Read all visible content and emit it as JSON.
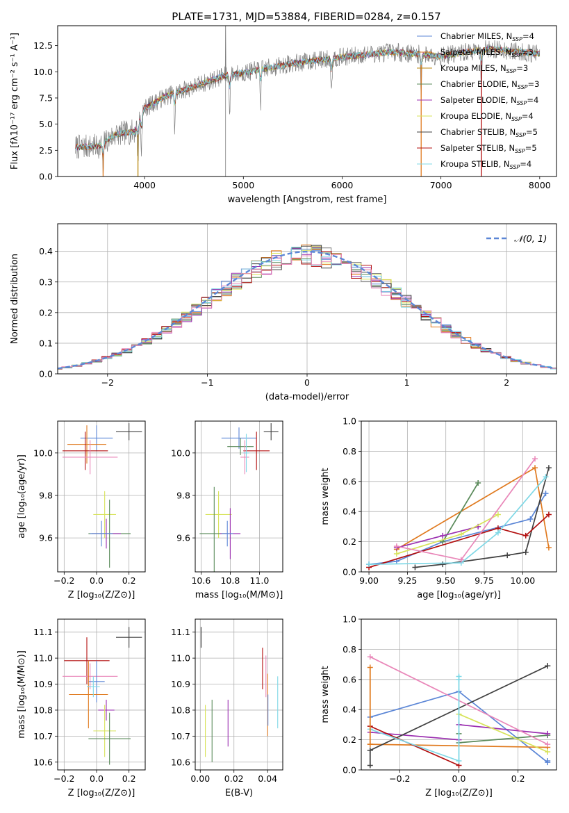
{
  "figure": {
    "title": "PLATE=1731, MJD=53884, FIBERID=0284, z=0.157"
  },
  "palette": [
    "#5b86d6",
    "#e07a1f",
    "#7f7f7f",
    "#5a8a5a",
    "#9b2fb0",
    "#d7e35a",
    "#404040",
    "#b30f0f",
    "#7fd8e6",
    "#e987b9"
  ],
  "legend_entries": [
    {
      "label": "Chabrier MILES, N",
      "sub": "SSP",
      "suffix": "=4",
      "color": "#5b86d6"
    },
    {
      "label": "Salpeter MILES, N",
      "sub": "SSP",
      "suffix": "=3",
      "color": "#e07a1f"
    },
    {
      "label": "Kroupa MILES, N",
      "sub": "SSP",
      "suffix": "=3",
      "color": "#b8860b"
    },
    {
      "label": "Chabrier ELODIE, N",
      "sub": "SSP",
      "suffix": "=3",
      "color": "#5a8a5a"
    },
    {
      "label": "Salpeter ELODIE, N",
      "sub": "SSP",
      "suffix": "=4",
      "color": "#9b2fb0"
    },
    {
      "label": "Kroupa ELODIE, N",
      "sub": "SSP",
      "suffix": "=4",
      "color": "#d7e35a"
    },
    {
      "label": "Chabrier STELIB, N",
      "sub": "SSP",
      "suffix": "=5",
      "color": "#404040"
    },
    {
      "label": "Salpeter STELIB, N",
      "sub": "SSP",
      "suffix": "=5",
      "color": "#b30f0f"
    },
    {
      "label": "Kroupa STELIB, N",
      "sub": "SSP",
      "suffix": "=4",
      "color": "#7fd8e6"
    }
  ],
  "chart_data": [
    {
      "id": "spectrum",
      "type": "line",
      "xlabel": "wavelength [Angstrom, rest frame]",
      "ylabel": "Flux [fλ10⁻¹⁷ erg cm⁻² s⁻¹ A⁻¹]",
      "xlim": [
        3120,
        8170
      ],
      "ylim": [
        0,
        14.4
      ],
      "xticks": [
        4000,
        5000,
        6000,
        7000,
        8000
      ],
      "yticks": [
        0.0,
        2.5,
        5.0,
        7.5,
        10.0,
        12.5
      ],
      "ytick_labels": [
        "0.0",
        "2.5",
        "5.0",
        "7.5",
        "10.0",
        "12.5"
      ],
      "x_start": 3300,
      "x_end": 8000,
      "continuum_anchors": [
        [
          3300,
          2.8
        ],
        [
          3550,
          2.9
        ],
        [
          3700,
          4.0
        ],
        [
          3900,
          4.3
        ],
        [
          4000,
          6.5
        ],
        [
          4200,
          7.6
        ],
        [
          4500,
          8.6
        ],
        [
          4800,
          9.6
        ],
        [
          5000,
          9.9
        ],
        [
          5500,
          10.8
        ],
        [
          6000,
          11.4
        ],
        [
          6500,
          11.9
        ],
        [
          7000,
          11.5
        ],
        [
          7500,
          12.2
        ],
        [
          8000,
          11.7
        ]
      ],
      "absorption_lines": [
        3580,
        3933,
        3968,
        4304,
        4861,
        5175,
        5892,
        6800,
        7410
      ],
      "spike_x": 4820,
      "legend_position": "upper right"
    },
    {
      "id": "residuals",
      "type": "histogram",
      "xlabel": "(data-model)/error",
      "ylabel": "Normed distribution",
      "xlim": [
        -2.5,
        2.5
      ],
      "ylim": [
        0,
        0.49
      ],
      "xticks": [
        -2,
        -1,
        0,
        1,
        2
      ],
      "xtick_labels": [
        "−2",
        "−1",
        "0",
        "1",
        "2"
      ],
      "yticks": [
        0.0,
        0.1,
        0.2,
        0.3,
        0.4
      ],
      "ytick_labels": [
        "0.0",
        "0.1",
        "0.2",
        "0.3",
        "0.4"
      ],
      "bin_width": 0.1,
      "reference_curve": {
        "label": "𝒩(0, 1)",
        "mean": 0,
        "sigma": 1,
        "color": "#5b86d6",
        "style": "dashed"
      },
      "grid": true,
      "legend_position": "upper right"
    },
    {
      "id": "age_vs_Z",
      "type": "scatter",
      "xlabel": "Z [log₁₀(Z/Z⊙)]",
      "ylabel": "age  [log₁₀(age/yr)]",
      "xlim": [
        -0.24,
        0.3
      ],
      "ylim": [
        9.44,
        10.15
      ],
      "xticks": [
        -0.2,
        0.0,
        0.2
      ],
      "xtick_labels": [
        "−0.2",
        "0.0",
        "0.2"
      ],
      "yticks": [
        9.6,
        9.8,
        10.0
      ],
      "ytick_labels": [
        "9.6",
        "9.8",
        "10.0"
      ],
      "points": [
        {
          "x": 0.0,
          "y": 10.07,
          "xerr": 0.1,
          "yerr": 0.06,
          "color": "#5b86d6"
        },
        {
          "x": -0.06,
          "y": 10.04,
          "xerr": 0.12,
          "yerr": 0.09,
          "color": "#e07a1f"
        },
        {
          "x": 0.2,
          "y": 10.1,
          "xerr": 0.08,
          "yerr": 0.04,
          "color": "#404040"
        },
        {
          "x": -0.07,
          "y": 10.01,
          "xerr": 0.14,
          "yerr": 0.09,
          "color": "#b30f0f"
        },
        {
          "x": -0.04,
          "y": 9.98,
          "xerr": 0.17,
          "yerr": 0.08,
          "color": "#e987b9"
        },
        {
          "x": 0.05,
          "y": 9.71,
          "xerr": 0.07,
          "yerr": 0.11,
          "color": "#d7e35a"
        },
        {
          "x": 0.08,
          "y": 9.62,
          "xerr": 0.13,
          "yerr": 0.16,
          "color": "#5a8a5a"
        },
        {
          "x": 0.06,
          "y": 9.62,
          "xerr": 0.09,
          "yerr": 0.07,
          "color": "#9b2fb0"
        },
        {
          "x": 0.03,
          "y": 9.62,
          "xerr": 0.07,
          "yerr": 0.06,
          "color": "#5b86d6"
        }
      ]
    },
    {
      "id": "age_vs_mass",
      "type": "scatter",
      "xlabel": "mass [log₁₀(M/M⊙)]",
      "ylabel": "",
      "xlim": [
        10.56,
        11.16
      ],
      "ylim": [
        9.44,
        10.15
      ],
      "xticks": [
        10.6,
        10.8,
        11.0
      ],
      "xtick_labels": [
        "10.6",
        "10.8",
        "11.0"
      ],
      "yticks": [
        9.6,
        9.8,
        10.0
      ],
      "ytick_labels": [
        "9.6",
        "9.8",
        "10.0"
      ],
      "points": [
        {
          "x": 10.86,
          "y": 10.07,
          "xerr": 0.12,
          "yerr": 0.05,
          "color": "#5b86d6"
        },
        {
          "x": 10.87,
          "y": 10.03,
          "xerr": 0.09,
          "yerr": 0.04,
          "color": "#5a8a5a"
        },
        {
          "x": 11.08,
          "y": 10.1,
          "xerr": 0.05,
          "yerr": 0.04,
          "color": "#404040"
        },
        {
          "x": 10.98,
          "y": 10.01,
          "xerr": 0.09,
          "yerr": 0.09,
          "color": "#b30f0f"
        },
        {
          "x": 10.9,
          "y": 9.98,
          "xerr": 0.03,
          "yerr": 0.08,
          "color": "#e987b9"
        },
        {
          "x": 10.91,
          "y": 10.0,
          "xerr": 0.02,
          "yerr": 0.09,
          "color": "#7fd8e6"
        },
        {
          "x": 10.72,
          "y": 9.71,
          "xerr": 0.09,
          "yerr": 0.11,
          "color": "#d7e35a"
        },
        {
          "x": 10.69,
          "y": 9.62,
          "xerr": 0.1,
          "yerr": 0.22,
          "color": "#5a8a5a"
        },
        {
          "x": 10.8,
          "y": 9.62,
          "xerr": 0.07,
          "yerr": 0.12,
          "color": "#9b2fb0"
        },
        {
          "x": 10.78,
          "y": 9.62,
          "xerr": 0.04,
          "yerr": 0.06,
          "color": "#5b86d6"
        }
      ]
    },
    {
      "id": "weight_vs_age",
      "type": "line",
      "xlabel": "age  [log₁₀(age/yr)]",
      "ylabel": "mass weight",
      "xlim": [
        8.95,
        10.22
      ],
      "ylim": [
        0,
        1.0
      ],
      "xticks": [
        9.0,
        9.25,
        9.5,
        9.75,
        10.0
      ],
      "xtick_labels": [
        "9.00",
        "9.25",
        "9.50",
        "9.75",
        "10.00"
      ],
      "yticks": [
        0.0,
        0.2,
        0.4,
        0.6,
        0.8,
        1.0
      ],
      "ytick_labels": [
        "0.0",
        "0.2",
        "0.4",
        "0.6",
        "0.8",
        "1.0"
      ],
      "series": [
        {
          "color": "#5b86d6",
          "points": [
            [
              9.0,
              0.05
            ],
            [
              9.18,
              0.07
            ],
            [
              9.48,
              0.2
            ],
            [
              10.05,
              0.35
            ],
            [
              10.15,
              0.52
            ]
          ]
        },
        {
          "color": "#e07a1f",
          "points": [
            [
              9.18,
              0.15
            ],
            [
              10.08,
              0.69
            ],
            [
              10.17,
              0.16
            ]
          ]
        },
        {
          "color": "#5a8a5a",
          "points": [
            [
              9.48,
              0.2
            ],
            [
              9.71,
              0.59
            ]
          ]
        },
        {
          "color": "#9b2fb0",
          "points": [
            [
              9.18,
              0.16
            ],
            [
              9.48,
              0.24
            ],
            [
              9.71,
              0.3
            ]
          ]
        },
        {
          "color": "#d7e35a",
          "points": [
            [
              9.18,
              0.12
            ],
            [
              9.6,
              0.25
            ],
            [
              9.84,
              0.38
            ]
          ]
        },
        {
          "color": "#404040",
          "points": [
            [
              9.3,
              0.03
            ],
            [
              9.48,
              0.05
            ],
            [
              9.9,
              0.11
            ],
            [
              10.02,
              0.13
            ],
            [
              10.17,
              0.69
            ]
          ]
        },
        {
          "color": "#b30f0f",
          "points": [
            [
              9.0,
              0.03
            ],
            [
              9.84,
              0.29
            ],
            [
              10.02,
              0.24
            ],
            [
              10.17,
              0.38
            ]
          ]
        },
        {
          "color": "#7fd8e6",
          "points": [
            [
              9.0,
              0.05
            ],
            [
              9.6,
              0.06
            ],
            [
              9.84,
              0.26
            ],
            [
              10.15,
              0.63
            ]
          ]
        },
        {
          "color": "#e987b9",
          "points": [
            [
              9.18,
              0.17
            ],
            [
              9.6,
              0.08
            ],
            [
              10.08,
              0.75
            ]
          ]
        }
      ],
      "grid": true
    },
    {
      "id": "mass_vs_Z",
      "type": "scatter",
      "xlabel": "Z [log₁₀(Z/Z⊙)]",
      "ylabel": "mass [log₁₀(M/M⊙)]",
      "xlim": [
        -0.24,
        0.3
      ],
      "ylim": [
        10.57,
        11.15
      ],
      "xticks": [
        -0.2,
        0.0,
        0.2
      ],
      "xtick_labels": [
        "−0.2",
        "0.0",
        "0.2"
      ],
      "yticks": [
        10.6,
        10.7,
        10.8,
        10.9,
        11.0,
        11.1
      ],
      "ytick_labels": [
        "10.6",
        "10.7",
        "10.8",
        "10.9",
        "11.0",
        "11.1"
      ],
      "points": [
        {
          "x": 0.2,
          "y": 11.08,
          "xerr": 0.08,
          "yerr": 0.04,
          "color": "#404040"
        },
        {
          "x": -0.06,
          "y": 10.99,
          "xerr": 0.14,
          "yerr": 0.09,
          "color": "#b30f0f"
        },
        {
          "x": -0.04,
          "y": 10.93,
          "xerr": 0.17,
          "yerr": 0.05,
          "color": "#e987b9"
        },
        {
          "x": 0.0,
          "y": 10.91,
          "xerr": 0.05,
          "yerr": 0.08,
          "color": "#5b86d6"
        },
        {
          "x": -0.05,
          "y": 10.86,
          "xerr": 0.12,
          "yerr": 0.13,
          "color": "#e07a1f"
        },
        {
          "x": -0.02,
          "y": 10.89,
          "xerr": 0.04,
          "yerr": 0.04,
          "color": "#7fd8e6"
        },
        {
          "x": 0.06,
          "y": 10.8,
          "xerr": 0.05,
          "yerr": 0.04,
          "color": "#9b2fb0"
        },
        {
          "x": 0.05,
          "y": 10.72,
          "xerr": 0.07,
          "yerr": 0.1,
          "color": "#d7e35a"
        },
        {
          "x": 0.08,
          "y": 10.69,
          "xerr": 0.13,
          "yerr": 0.1,
          "color": "#5a8a5a"
        }
      ]
    },
    {
      "id": "mass_vs_ebv",
      "type": "scatter",
      "xlabel": "E(B-V)",
      "ylabel": "",
      "xlim": [
        -0.003,
        0.049
      ],
      "ylim": [
        10.57,
        11.15
      ],
      "xticks": [
        0.0,
        0.02,
        0.04
      ],
      "xtick_labels": [
        "0.00",
        "0.02",
        "0.04"
      ],
      "yticks": [
        10.6,
        10.7,
        10.8,
        10.9,
        11.0,
        11.1
      ],
      "ytick_labels": [
        "10.6",
        "10.7",
        "10.8",
        "10.9",
        "11.0",
        "11.1"
      ],
      "points": [
        {
          "x": 0.0005,
          "y": 11.08,
          "xerr": 0,
          "yerr": 0.04,
          "color": "#404040"
        },
        {
          "x": 0.003,
          "y": 10.72,
          "xerr": 0,
          "yerr": 0.1,
          "color": "#d7e35a"
        },
        {
          "x": 0.007,
          "y": 10.72,
          "xerr": 0,
          "yerr": 0.12,
          "color": "#5a8a5a"
        },
        {
          "x": 0.0165,
          "y": 10.75,
          "xerr": 0,
          "yerr": 0.09,
          "color": "#9b2fb0"
        },
        {
          "x": 0.037,
          "y": 10.96,
          "xerr": 0,
          "yerr": 0.08,
          "color": "#b30f0f"
        },
        {
          "x": 0.039,
          "y": 10.93,
          "xerr": 0,
          "yerr": 0.08,
          "color": "#e987b9"
        },
        {
          "x": 0.04,
          "y": 10.82,
          "xerr": 0,
          "yerr": 0.12,
          "color": "#e07a1f"
        },
        {
          "x": 0.0402,
          "y": 10.8,
          "xerr": 0,
          "yerr": 0.06,
          "color": "#5b86d6"
        },
        {
          "x": 0.046,
          "y": 10.83,
          "xerr": 0,
          "yerr": 0.1,
          "color": "#7fd8e6"
        }
      ]
    },
    {
      "id": "weight_vs_Z",
      "type": "line",
      "xlabel": "Z [log₁₀(Z/Z⊙)]",
      "ylabel": "mass weight",
      "xlim": [
        -0.33,
        0.33
      ],
      "ylim": [
        0,
        1.0
      ],
      "xticks": [
        -0.2,
        0.0,
        0.2
      ],
      "xtick_labels": [
        "−0.2",
        "0.0",
        "0.2"
      ],
      "yticks": [
        0.0,
        0.2,
        0.4,
        0.6,
        0.8,
        1.0
      ],
      "ytick_labels": [
        "0.0",
        "0.2",
        "0.4",
        "0.6",
        "0.8",
        "1.0"
      ],
      "series": [
        {
          "color": "#5b86d6",
          "points": [
            [
              -0.3,
              0.35
            ],
            [
              0.0,
              0.52
            ],
            [
              0.3,
              0.05
            ]
          ]
        },
        {
          "color": "#e07a1f",
          "points": [
            [
              -0.3,
              0.17
            ],
            [
              0.3,
              0.15
            ]
          ]
        },
        {
          "color": "#5a8a5a",
          "points": [
            [
              0.0,
              0.18
            ],
            [
              0.3,
              0.23
            ]
          ]
        },
        {
          "color": "#9b2fb0",
          "points": [
            [
              -0.3,
              0.25
            ],
            [
              0.0,
              0.2
            ]
          ]
        },
        {
          "color": "#9b2fb0",
          "points": [
            [
              0.0,
              0.3
            ],
            [
              0.3,
              0.24
            ]
          ]
        },
        {
          "color": "#d7e35a",
          "points": [
            [
              0.0,
              0.37
            ],
            [
              0.3,
              0.12
            ]
          ]
        },
        {
          "color": "#404040",
          "points": [
            [
              -0.3,
              0.13
            ],
            [
              0.3,
              0.69
            ]
          ]
        },
        {
          "color": "#b30f0f",
          "points": [
            [
              -0.3,
              0.29
            ],
            [
              0.0,
              0.03
            ]
          ]
        },
        {
          "color": "#7fd8e6",
          "points": [
            [
              -0.3,
              0.27
            ],
            [
              0.0,
              0.06
            ]
          ]
        },
        {
          "color": "#e987b9",
          "points": [
            [
              -0.3,
              0.75
            ],
            [
              0.3,
              0.17
            ]
          ]
        }
      ],
      "markers": [
        {
          "color": "#e07a1f",
          "x": -0.3,
          "y": 0.68
        },
        {
          "color": "#e07a1f",
          "x": -0.3,
          "y": 0.17
        },
        {
          "color": "#404040",
          "x": -0.3,
          "y": 0.03
        },
        {
          "color": "#404040",
          "x": -0.3,
          "y": 0.13
        },
        {
          "color": "#7fd8e6",
          "x": 0.0,
          "y": 0.62
        },
        {
          "color": "#7fd8e6",
          "x": 0.0,
          "y": 0.6
        },
        {
          "color": "#5a8a5a",
          "x": 0.0,
          "y": 0.24
        },
        {
          "color": "#404040",
          "x": 0.3,
          "y": 0.69
        },
        {
          "color": "#5b86d6",
          "x": 0.3,
          "y": 0.06
        }
      ],
      "grid": true
    }
  ]
}
